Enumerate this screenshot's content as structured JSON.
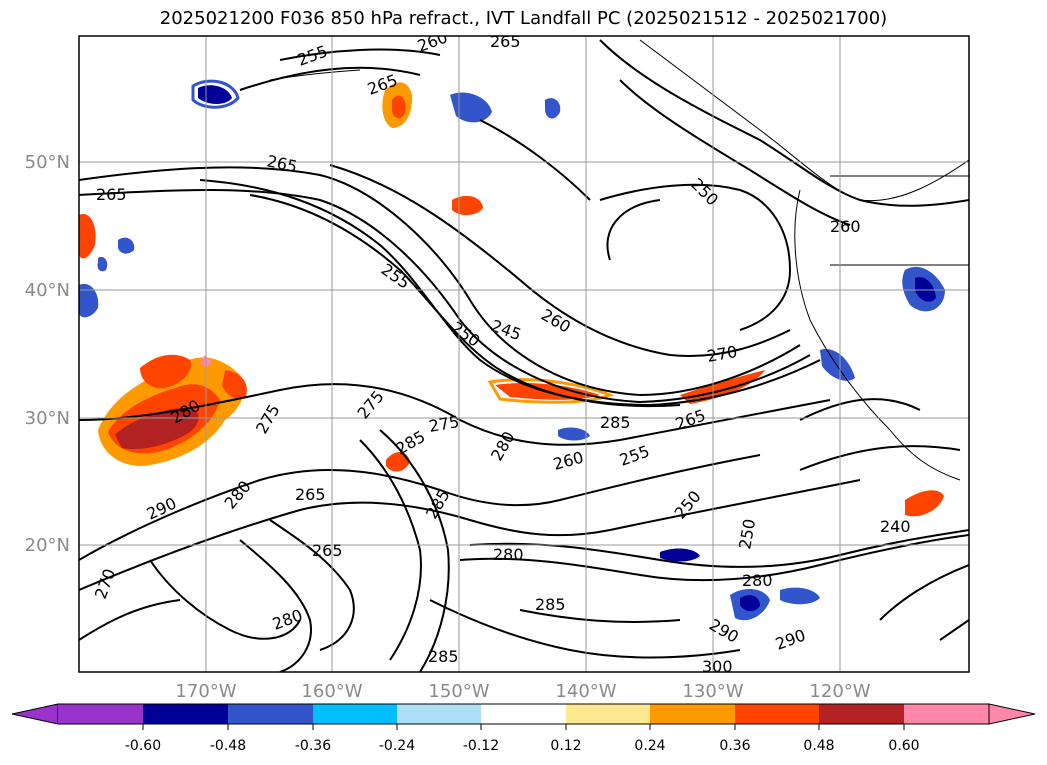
{
  "title": "2025021200 F036 850 hPa refract., IVT Landfall PC (2025021512 - 2025021700)",
  "map": {
    "lon_labels": [
      "170°W",
      "160°W",
      "150°W",
      "140°W",
      "130°W",
      "120°W"
    ],
    "lat_labels": [
      "50°N",
      "40°N",
      "30°N",
      "20°N"
    ],
    "contour_labels": [
      "265",
      "255",
      "260",
      "265",
      "265",
      "250",
      "260",
      "255",
      "250",
      "245",
      "260",
      "270",
      "285",
      "280",
      "275",
      "285",
      "265",
      "255",
      "260",
      "290",
      "280",
      "275",
      "265",
      "285",
      "280",
      "250",
      "250",
      "240",
      "280",
      "270",
      "290",
      "300",
      "285",
      "265",
      "275",
      "280",
      "285",
      "290",
      "280",
      "265"
    ]
  },
  "colorbar": {
    "ticks": [
      "-0.60",
      "-0.48",
      "-0.36",
      "-0.24",
      "-0.12",
      "0.12",
      "0.24",
      "0.36",
      "0.48",
      "0.60"
    ],
    "colors": [
      "#9933cc",
      "#000099",
      "#3355cc",
      "#00bfff",
      "#aee0f5",
      "#ffffff",
      "#ffe990",
      "#ff9900",
      "#ff4400",
      "#b22222",
      "#ff88aa"
    ]
  }
}
